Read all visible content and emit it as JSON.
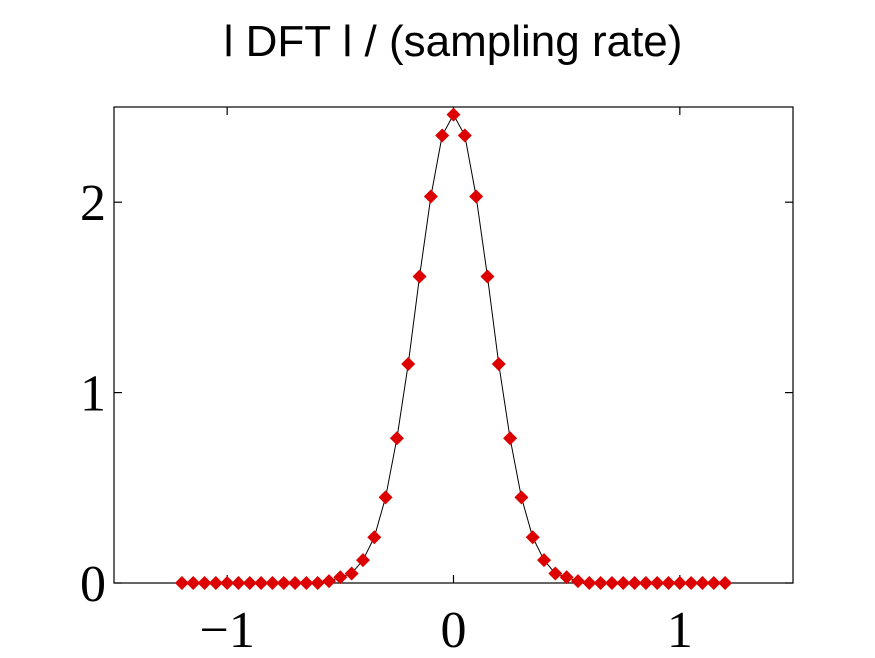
{
  "chart_data": {
    "type": "line",
    "title": "l DFT l / (sampling rate)",
    "xlabel": "",
    "ylabel": "",
    "xlim": [
      -1.5,
      1.5
    ],
    "ylim": [
      0,
      2.5
    ],
    "grid": false,
    "legend": "none",
    "x_ticks": [
      -1,
      0,
      1
    ],
    "x_tick_labels": [
      "−1",
      "0",
      "1"
    ],
    "y_ticks": [
      0,
      1,
      2
    ],
    "y_tick_labels": [
      "0",
      "1",
      "2"
    ],
    "series": [
      {
        "name": "|DFT|/(sampling rate)",
        "color": "#dd0000",
        "line_color": "#000000",
        "marker": "diamond",
        "x": [
          -1.2,
          -1.15,
          -1.1,
          -1.05,
          -1.0,
          -0.95,
          -0.9,
          -0.85,
          -0.8,
          -0.75,
          -0.7,
          -0.65,
          -0.6,
          -0.55,
          -0.5,
          -0.45,
          -0.4,
          -0.35,
          -0.3,
          -0.25,
          -0.2,
          -0.15,
          -0.1,
          -0.05,
          0.0,
          0.05,
          0.1,
          0.15,
          0.2,
          0.25,
          0.3,
          0.35,
          0.4,
          0.45,
          0.5,
          0.55,
          0.6,
          0.65,
          0.7,
          0.75,
          0.8,
          0.85,
          0.9,
          0.95,
          1.0,
          1.05,
          1.1,
          1.15,
          1.2
        ],
        "y": [
          0,
          0,
          0,
          0,
          0,
          0,
          0,
          0,
          0,
          0,
          0,
          0,
          0,
          0.01,
          0.03,
          0.05,
          0.12,
          0.24,
          0.45,
          0.76,
          1.15,
          1.61,
          2.03,
          2.35,
          2.46,
          2.35,
          2.03,
          1.61,
          1.15,
          0.76,
          0.45,
          0.24,
          0.12,
          0.05,
          0.03,
          0.01,
          0,
          0,
          0,
          0,
          0,
          0,
          0,
          0,
          0,
          0,
          0,
          0,
          0
        ]
      }
    ]
  }
}
